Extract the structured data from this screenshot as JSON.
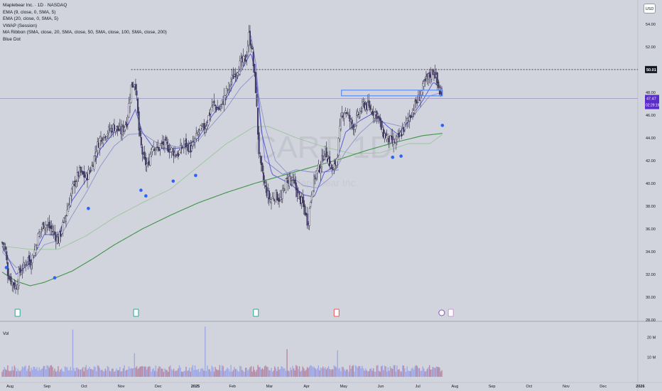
{
  "legend": {
    "title": "Maplebear Inc. · 1D · NASDAQ",
    "indicators": [
      "EMA (9, close, 0, SMA, 5)",
      "EMA (20, close, 0, SMA, 5)",
      "VWAP (Session)",
      "MA Ribbon (SMA, close, 20, SMA, close, 50, SMA, close, 100, SMA, close, 200)",
      "Blue Dot"
    ]
  },
  "currency_button": "USD",
  "watermark": "CART, 1D",
  "watermark_sub": "Maplebear Inc.",
  "volume_label": "Vol",
  "colors": {
    "background": "#d1d4dc",
    "up_candle": "#f4f5f8",
    "down_candle": "#4a3f7a",
    "ema9": "#5a5fd1",
    "ema20": "#8e92c7",
    "ma200": "#3f9448",
    "ma100": "#9bc59d",
    "blue_dot": "#2962ff",
    "price_label": "#5b2cc9"
  },
  "chart_data": {
    "type": "candlestick",
    "symbol": "CART",
    "interval": "1D",
    "ylim": [
      28,
      55.5
    ],
    "y_ticks": [
      28,
      30,
      32,
      34,
      36,
      38,
      40,
      42,
      44,
      46,
      48,
      52,
      54
    ],
    "y_tick_labels": [
      "28.00",
      "30.00",
      "32.00",
      "34.00",
      "36.00",
      "38.00",
      "40.00",
      "42.00",
      "44.00",
      "46.00",
      "48.00",
      "52.00",
      "54.00"
    ],
    "x_tick_labels": [
      "Aug",
      "Sep",
      "Oct",
      "Nov",
      "Dec",
      "2025",
      "Feb",
      "Mar",
      "Apr",
      "May",
      "Jun",
      "Jul",
      "Aug",
      "Sep",
      "Oct",
      "Nov",
      "Dec",
      "2026"
    ],
    "resistance_level": 50.01,
    "resistance_label": "50.01",
    "current_price": 47.47,
    "current_price_label": "47.47",
    "countdown_label": "02:29:19",
    "horizontal_zone": [
      47.7,
      48.2
    ],
    "close_path": [
      [
        0,
        34.8
      ],
      [
        4,
        34.5
      ],
      [
        8,
        32.2
      ],
      [
        12,
        31.5
      ],
      [
        16,
        31.2
      ],
      [
        20,
        30.8
      ],
      [
        24,
        32.0
      ],
      [
        28,
        32.5
      ],
      [
        32,
        32.8
      ],
      [
        36,
        33.5
      ],
      [
        40,
        33.0
      ],
      [
        46,
        34.0
      ],
      [
        52,
        35.5
      ],
      [
        60,
        36.5
      ],
      [
        70,
        36.0
      ],
      [
        80,
        35.0
      ],
      [
        90,
        37.0
      ],
      [
        100,
        39.5
      ],
      [
        110,
        41.0
      ],
      [
        120,
        40.5
      ],
      [
        128,
        41.5
      ],
      [
        134,
        43.0
      ],
      [
        140,
        44.0
      ],
      [
        150,
        44.5
      ],
      [
        160,
        45.0
      ],
      [
        170,
        44.5
      ],
      [
        178,
        45.5
      ],
      [
        184,
        48.5
      ],
      [
        190,
        49.0
      ],
      [
        196,
        44.0
      ],
      [
        202,
        42.0
      ],
      [
        208,
        41.5
      ],
      [
        214,
        43.5
      ],
      [
        222,
        43.0
      ],
      [
        230,
        43.5
      ],
      [
        240,
        43.0
      ],
      [
        250,
        42.5
      ],
      [
        260,
        43.5
      ],
      [
        270,
        43.0
      ],
      [
        280,
        44.5
      ],
      [
        290,
        45.0
      ],
      [
        300,
        47.0
      ],
      [
        310,
        46.5
      ],
      [
        320,
        48.0
      ],
      [
        330,
        49.5
      ],
      [
        340,
        50.5
      ],
      [
        348,
        51.0
      ],
      [
        352,
        53.0
      ],
      [
        356,
        52.0
      ],
      [
        362,
        48.0
      ],
      [
        366,
        43.0
      ],
      [
        370,
        41.0
      ],
      [
        376,
        39.5
      ],
      [
        382,
        38.5
      ],
      [
        390,
        39.0
      ],
      [
        398,
        38.5
      ],
      [
        404,
        40.0
      ],
      [
        410,
        40.5
      ],
      [
        416,
        40.0
      ],
      [
        422,
        39.0
      ],
      [
        430,
        38.0
      ],
      [
        436,
        36.5
      ],
      [
        442,
        39.5
      ],
      [
        448,
        41.0
      ],
      [
        454,
        41.5
      ],
      [
        460,
        43.0
      ],
      [
        466,
        42.0
      ],
      [
        472,
        41.0
      ],
      [
        478,
        42.5
      ],
      [
        484,
        46.0
      ],
      [
        490,
        46.5
      ],
      [
        496,
        45.5
      ],
      [
        502,
        45.0
      ],
      [
        508,
        46.0
      ],
      [
        516,
        47.0
      ],
      [
        526,
        46.5
      ],
      [
        536,
        46.0
      ],
      [
        542,
        44.5
      ],
      [
        550,
        44.0
      ],
      [
        558,
        43.5
      ],
      [
        566,
        44.0
      ],
      [
        574,
        45.0
      ],
      [
        582,
        46.0
      ],
      [
        590,
        47.0
      ],
      [
        598,
        48.0
      ],
      [
        604,
        49.0
      ],
      [
        610,
        49.5
      ],
      [
        616,
        50.0
      ],
      [
        620,
        49.0
      ],
      [
        624,
        48.0
      ],
      [
        628,
        47.47
      ]
    ],
    "ema9_path": [
      [
        0,
        34.5
      ],
      [
        20,
        32.0
      ],
      [
        40,
        33.0
      ],
      [
        60,
        35.5
      ],
      [
        80,
        35.5
      ],
      [
        100,
        38.5
      ],
      [
        120,
        40.3
      ],
      [
        140,
        43.0
      ],
      [
        160,
        44.5
      ],
      [
        180,
        45.2
      ],
      [
        190,
        46.5
      ],
      [
        200,
        44.5
      ],
      [
        215,
        43.2
      ],
      [
        240,
        43.0
      ],
      [
        260,
        43.2
      ],
      [
        280,
        44.0
      ],
      [
        300,
        46.0
      ],
      [
        320,
        47.5
      ],
      [
        340,
        49.8
      ],
      [
        355,
        51.5
      ],
      [
        362,
        49.5
      ],
      [
        370,
        44.5
      ],
      [
        385,
        40.8
      ],
      [
        410,
        40.0
      ],
      [
        430,
        39.0
      ],
      [
        445,
        38.8
      ],
      [
        460,
        41.0
      ],
      [
        475,
        41.5
      ],
      [
        490,
        44.5
      ],
      [
        510,
        45.5
      ],
      [
        530,
        46.2
      ],
      [
        550,
        45.0
      ],
      [
        565,
        44.3
      ],
      [
        580,
        45.5
      ],
      [
        600,
        47.3
      ],
      [
        615,
        48.9
      ],
      [
        628,
        48.3
      ]
    ],
    "ema20_path": [
      [
        0,
        34.0
      ],
      [
        20,
        32.6
      ],
      [
        40,
        33.0
      ],
      [
        60,
        34.6
      ],
      [
        80,
        35.0
      ],
      [
        100,
        37.2
      ],
      [
        120,
        39.2
      ],
      [
        140,
        41.5
      ],
      [
        160,
        43.3
      ],
      [
        180,
        44.3
      ],
      [
        200,
        44.4
      ],
      [
        220,
        43.6
      ],
      [
        250,
        43.2
      ],
      [
        280,
        43.8
      ],
      [
        300,
        45.2
      ],
      [
        320,
        46.6
      ],
      [
        340,
        48.4
      ],
      [
        360,
        49.6
      ],
      [
        375,
        45.0
      ],
      [
        390,
        42.0
      ],
      [
        410,
        40.7
      ],
      [
        430,
        39.8
      ],
      [
        450,
        39.6
      ],
      [
        470,
        40.6
      ],
      [
        490,
        42.8
      ],
      [
        510,
        44.4
      ],
      [
        530,
        45.5
      ],
      [
        550,
        45.3
      ],
      [
        570,
        45.0
      ],
      [
        590,
        46.2
      ],
      [
        610,
        47.7
      ],
      [
        628,
        48.0
      ]
    ],
    "vwap_path": [
      [
        355,
        53.0
      ],
      [
        362,
        50.5
      ],
      [
        368,
        46.0
      ],
      [
        375,
        42.0
      ],
      [
        385,
        41.5
      ],
      [
        400,
        40.8
      ],
      [
        420,
        41.2
      ],
      [
        440,
        41.0
      ],
      [
        460,
        41.0
      ],
      [
        480,
        41.2
      ]
    ],
    "ma200_path": [
      [
        0,
        32.2
      ],
      [
        20,
        31.4
      ],
      [
        40,
        31.0
      ],
      [
        60,
        31.3
      ],
      [
        80,
        31.8
      ],
      [
        100,
        32.3
      ],
      [
        130,
        33.4
      ],
      [
        160,
        34.6
      ],
      [
        200,
        36.0
      ],
      [
        240,
        37.2
      ],
      [
        280,
        38.3
      ],
      [
        320,
        39.2
      ],
      [
        360,
        40.0
      ],
      [
        400,
        40.7
      ],
      [
        440,
        41.4
      ],
      [
        480,
        42.1
      ],
      [
        520,
        42.9
      ],
      [
        560,
        43.6
      ],
      [
        600,
        44.2
      ],
      [
        628,
        44.4
      ]
    ],
    "ma100_path": [
      [
        0,
        34.5
      ],
      [
        40,
        34.2
      ],
      [
        80,
        34.2
      ],
      [
        120,
        35.4
      ],
      [
        160,
        37.0
      ],
      [
        200,
        38.3
      ],
      [
        240,
        39.5
      ],
      [
        280,
        41.5
      ],
      [
        320,
        43.5
      ],
      [
        360,
        45.0
      ],
      [
        380,
        45.0
      ],
      [
        420,
        44.0
      ],
      [
        460,
        43.2
      ],
      [
        500,
        42.6
      ],
      [
        540,
        42.7
      ],
      [
        580,
        43.5
      ],
      [
        610,
        43.5
      ],
      [
        628,
        44.3
      ]
    ],
    "blue_dots": [
      [
        6,
        32.6
      ],
      [
        75,
        31.7
      ],
      [
        123,
        37.8
      ],
      [
        198,
        39.4
      ],
      [
        205,
        38.9
      ],
      [
        244,
        40.2
      ],
      [
        276,
        40.7
      ],
      [
        557,
        42.3
      ],
      [
        569,
        42.4
      ],
      [
        628,
        45.1
      ]
    ],
    "volume_ylim": [
      0,
      26000000
    ],
    "volume_tick_labels": [
      "20 M",
      "10 M"
    ],
    "volume_ticks": [
      20000000,
      10000000
    ],
    "volume_spikes": [
      [
        101,
        24000000
      ],
      [
        290,
        25500000
      ],
      [
        407,
        14000000
      ],
      [
        479,
        13500000
      ],
      [
        189,
        12000000
      ]
    ],
    "event_markers": [
      {
        "day": 22,
        "type": "earnings"
      },
      {
        "day": 191,
        "type": "earnings"
      },
      {
        "day": 362,
        "type": "earnings"
      },
      {
        "day": 477,
        "type": "earnings-down"
      },
      {
        "day": 627,
        "type": "lightning"
      },
      {
        "day": 640,
        "type": "earnings-upcoming"
      }
    ]
  }
}
